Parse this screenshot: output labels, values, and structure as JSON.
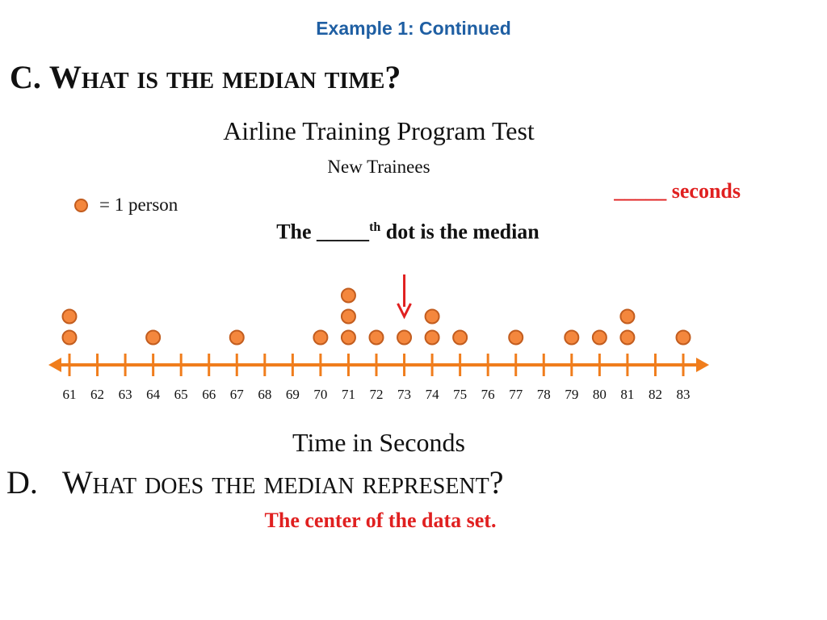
{
  "slide": {
    "heading": "Example 1: Continued",
    "question_c": {
      "letter": "C.",
      "text": "What is the median time?"
    },
    "answer_blank": "_____ seconds",
    "median_note": {
      "before": "The _____",
      "sup": "th",
      "after": " dot is the median"
    },
    "question_d": {
      "letter": "D.",
      "text": "What does the median represent?"
    },
    "answer_d": "The center of the data set."
  },
  "legend": {
    "label": "= 1 person"
  },
  "colors": {
    "dot_fill": "#f4873d",
    "dot_stroke": "#c25d1f",
    "axis": "#f07d1c",
    "arrow": "#e02020",
    "heading": "#1f5fa3"
  },
  "chart_data": {
    "type": "dot plot",
    "title": "Airline Training Program Test",
    "subtitle": "New Trainees",
    "xlabel": "Time in Seconds",
    "xlim": [
      61,
      83
    ],
    "ticks": [
      61,
      62,
      63,
      64,
      65,
      66,
      67,
      68,
      69,
      70,
      71,
      72,
      73,
      74,
      75,
      76,
      77,
      78,
      79,
      80,
      81,
      82,
      83
    ],
    "points": [
      {
        "x": 61,
        "count": 2
      },
      {
        "x": 64,
        "count": 1
      },
      {
        "x": 67,
        "count": 1
      },
      {
        "x": 70,
        "count": 1
      },
      {
        "x": 71,
        "count": 3
      },
      {
        "x": 72,
        "count": 1
      },
      {
        "x": 73,
        "count": 1
      },
      {
        "x": 74,
        "count": 2
      },
      {
        "x": 75,
        "count": 1
      },
      {
        "x": 77,
        "count": 1
      },
      {
        "x": 79,
        "count": 1
      },
      {
        "x": 80,
        "count": 1
      },
      {
        "x": 81,
        "count": 2
      },
      {
        "x": 83,
        "count": 1
      }
    ],
    "marker_x": 73
  }
}
